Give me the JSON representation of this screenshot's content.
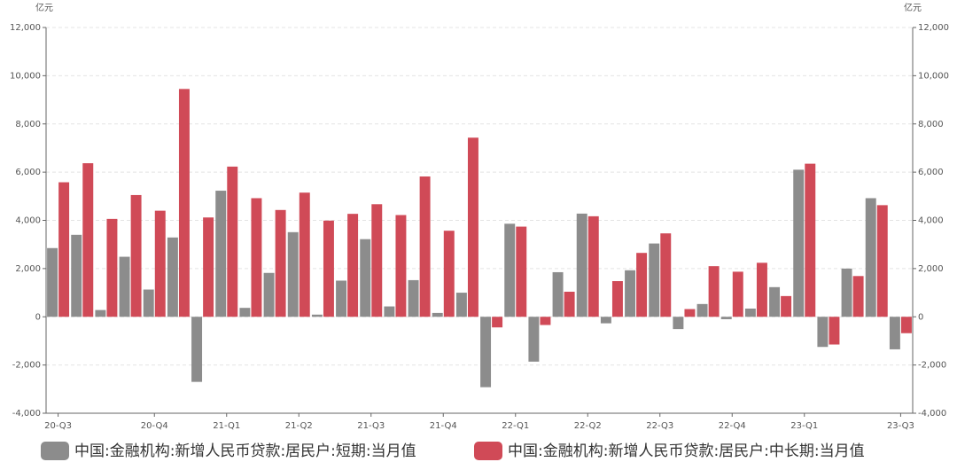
{
  "chart_data": {
    "type": "bar",
    "unit": "亿元",
    "categories": [
      "20-Q3",
      null,
      null,
      null,
      "20-Q4",
      null,
      null,
      "21-Q1",
      null,
      null,
      "21-Q2",
      null,
      null,
      "21-Q3",
      null,
      null,
      "21-Q4",
      null,
      null,
      "22-Q1",
      null,
      null,
      "22-Q2",
      null,
      null,
      "22-Q3",
      null,
      null,
      "22-Q4",
      null,
      null,
      "23-Q1",
      null,
      null,
      null,
      "23-Q3"
    ],
    "series": [
      {
        "name": "中国:金融机构:新增人民币贷款:居民户:短期:当月值",
        "color": "#8c8c8c",
        "values": [
          2850,
          3400,
          280,
          2490,
          1130,
          3290,
          -2700,
          5230,
          370,
          1820,
          3510,
          90,
          1500,
          3220,
          430,
          1520,
          160,
          1000,
          -2920,
          3860,
          -1860,
          1850,
          4280,
          -270,
          1930,
          3040,
          -510,
          530,
          -100,
          340,
          1230,
          6100,
          -1250,
          2000,
          4920,
          -1350
        ]
      },
      {
        "name": "中国:金融机构:新增人民币贷款:居民户:中长期:当月值",
        "color": "#d04a57",
        "values": [
          5580,
          6370,
          4060,
          5050,
          4400,
          9450,
          4120,
          6230,
          4920,
          4430,
          5150,
          3990,
          4270,
          4670,
          4220,
          5820,
          3570,
          7430,
          -440,
          3740,
          -340,
          1040,
          4170,
          1480,
          2650,
          3460,
          320,
          2100,
          1870,
          2240,
          860,
          6350,
          -1150,
          1690,
          4630,
          -680
        ]
      }
    ],
    "ylim": [
      -4000,
      12000
    ],
    "yticks": [
      {
        "value": -4000,
        "label": "-4,000"
      },
      {
        "value": -2000,
        "label": "-2,000"
      },
      0,
      {
        "value": 2000,
        "label": "2,000"
      },
      {
        "value": 4000,
        "label": "4,000"
      },
      {
        "value": 6000,
        "label": "6,000"
      },
      {
        "value": 8000,
        "label": "8,000"
      },
      {
        "value": 10000,
        "label": "10,000"
      },
      {
        "value": 12000,
        "label": "12,000"
      }
    ],
    "grid": true
  }
}
